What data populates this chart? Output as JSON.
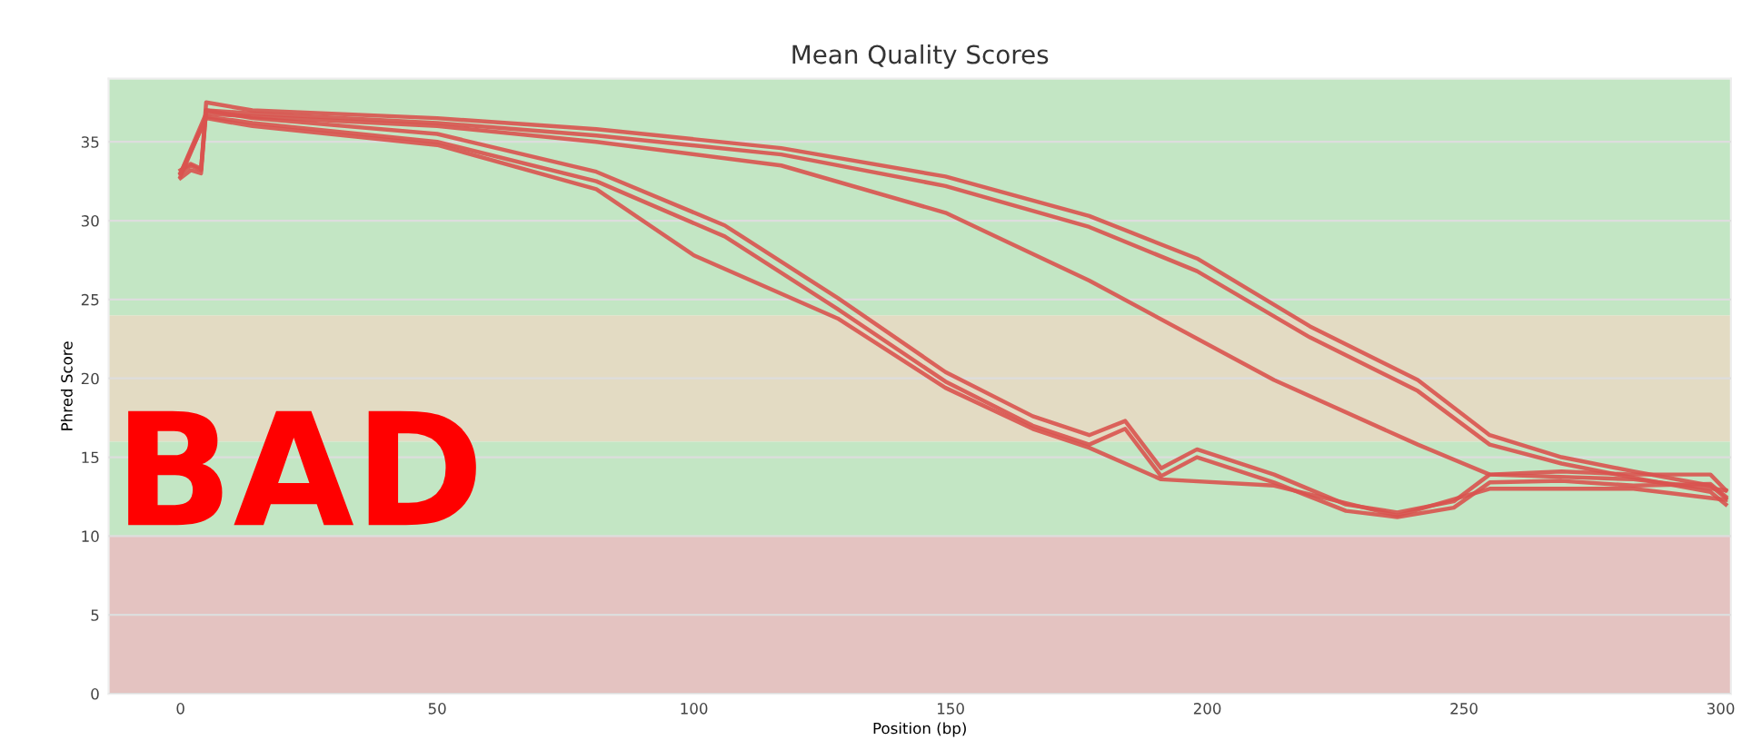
{
  "chart_data": {
    "type": "line",
    "title": "Mean Quality Scores",
    "xlabel": "Position (bp)",
    "ylabel": "Phred Score",
    "xlim": [
      -14,
      302
    ],
    "ylim": [
      0,
      39
    ],
    "xticks": [
      0,
      50,
      100,
      150,
      200,
      250,
      300
    ],
    "yticks": [
      0,
      5,
      10,
      15,
      20,
      25,
      30,
      35
    ],
    "grid": "y",
    "legend": false,
    "marker": "none",
    "line_style": "solid",
    "bands": [
      {
        "axis": "y",
        "from": 0,
        "to": 10,
        "label": null,
        "color": "#e4c3c1"
      },
      {
        "axis": "y",
        "from": 10,
        "to": 16,
        "label": null,
        "color": "#c3e6c4"
      },
      {
        "axis": "y",
        "from": 16,
        "to": 24,
        "label": null,
        "color": "#e3dbc3"
      },
      {
        "axis": "y",
        "from": 24,
        "to": 39,
        "label": null,
        "color": "#c3e6c4"
      }
    ],
    "annotations": [
      "BAD"
    ],
    "series": [
      {
        "color": "#d9534f",
        "x": [
          0,
          2,
          4,
          5,
          14,
          50,
          81,
          117,
          149,
          177,
          198,
          220,
          241,
          255,
          269,
          283,
          298,
          301
        ],
        "values": [
          33.0,
          33.5,
          33.2,
          37.5,
          37.0,
          36.5,
          35.8,
          34.6,
          32.8,
          30.3,
          27.6,
          23.3,
          19.9,
          16.4,
          15.0,
          14.1,
          13.2,
          12.4
        ]
      },
      {
        "color": "#d9534f",
        "x": [
          0,
          2,
          4,
          5,
          14,
          50,
          81,
          117,
          149,
          177,
          198,
          220,
          241,
          255,
          269,
          283,
          298,
          301
        ],
        "values": [
          32.7,
          33.2,
          33.0,
          37.0,
          36.8,
          36.2,
          35.4,
          34.2,
          32.2,
          29.6,
          26.8,
          22.6,
          19.2,
          15.8,
          14.6,
          13.7,
          12.8,
          12.0
        ]
      },
      {
        "color": "#d9534f",
        "x": [
          0,
          5,
          14,
          50,
          81,
          117,
          149,
          177,
          213,
          241,
          255,
          283,
          301
        ],
        "values": [
          33.0,
          36.8,
          36.6,
          36.0,
          35.0,
          33.5,
          30.5,
          26.2,
          19.9,
          15.8,
          13.9,
          13.6,
          12.9
        ]
      },
      {
        "color": "#d9534f",
        "x": [
          0,
          2,
          4,
          5,
          14,
          50,
          81,
          106,
          128,
          149,
          166,
          177,
          184,
          191,
          198,
          213,
          227,
          237,
          248,
          255,
          269,
          283,
          298,
          301
        ],
        "values": [
          33.2,
          33.6,
          33.3,
          37.0,
          36.5,
          35.5,
          33.1,
          29.7,
          25.1,
          20.4,
          17.6,
          16.4,
          17.3,
          14.3,
          15.5,
          13.9,
          12.0,
          11.5,
          12.2,
          13.9,
          14.1,
          13.9,
          13.9,
          12.9
        ]
      },
      {
        "color": "#d9534f",
        "x": [
          0,
          5,
          14,
          50,
          81,
          106,
          128,
          149,
          166,
          177,
          184,
          191,
          198,
          213,
          227,
          237,
          248,
          255,
          269,
          283,
          298,
          301
        ],
        "values": [
          32.8,
          36.6,
          36.2,
          35.0,
          32.5,
          29.0,
          24.4,
          19.8,
          17.0,
          15.8,
          16.8,
          13.8,
          15.0,
          13.4,
          11.6,
          11.2,
          11.8,
          13.4,
          13.5,
          13.2,
          13.3,
          12.5
        ]
      },
      {
        "color": "#d9534f",
        "x": [
          0,
          5,
          14,
          50,
          81,
          100,
          128,
          149,
          166,
          177,
          191,
          213,
          237,
          255,
          283,
          301
        ],
        "values": [
          33.0,
          36.5,
          36.0,
          34.8,
          32.0,
          27.8,
          23.8,
          19.4,
          16.8,
          15.6,
          13.6,
          13.2,
          11.3,
          13.0,
          13.0,
          12.3
        ]
      }
    ]
  }
}
